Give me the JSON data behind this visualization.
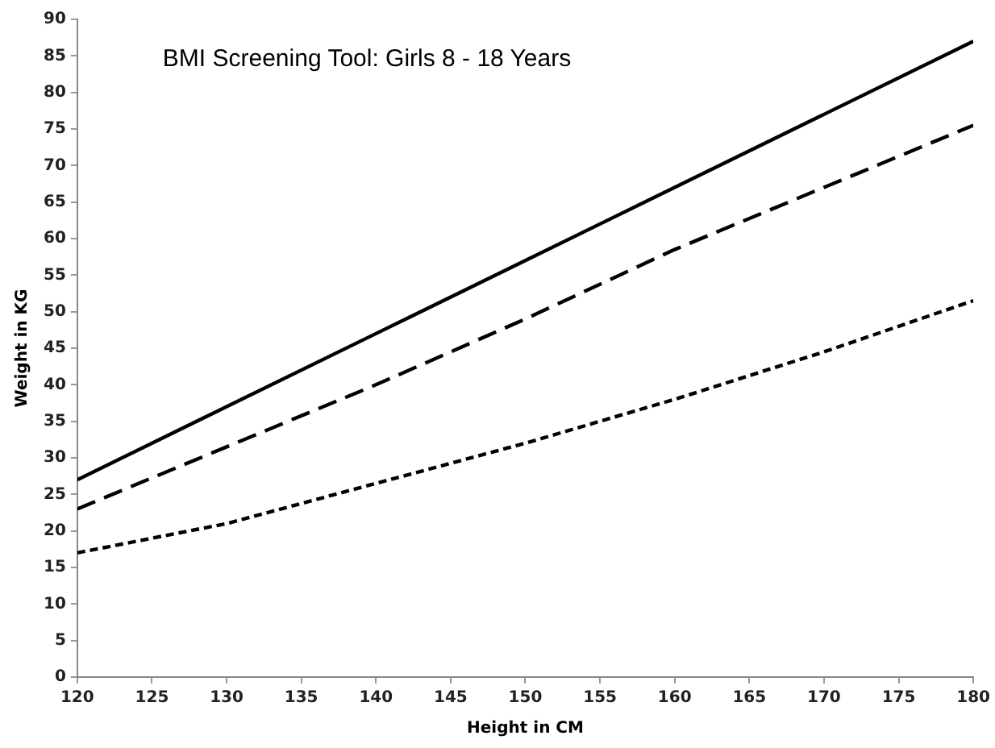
{
  "chart_data": {
    "type": "line",
    "title": "BMI Screening Tool: Girls 8 - 18 Years",
    "xlabel": "Height in CM",
    "ylabel": "Weight in KG",
    "x": [
      120,
      130,
      140,
      150,
      160,
      170,
      180
    ],
    "series": [
      {
        "color": "#000000",
        "line_style": "solid",
        "values": [
          27,
          37,
          47,
          57,
          67,
          77,
          87
        ]
      },
      {
        "color": "#000000",
        "line_style": "dashed",
        "values": [
          23,
          31.5,
          40,
          49,
          58.5,
          67,
          75.5
        ]
      },
      {
        "color": "#000000",
        "line_style": "dotted",
        "values": [
          17,
          21,
          26.5,
          32,
          38,
          44.5,
          51.5
        ]
      }
    ],
    "xlim": [
      120,
      180
    ],
    "xticks": [
      120,
      125,
      130,
      135,
      140,
      145,
      150,
      155,
      160,
      165,
      170,
      175,
      180
    ],
    "ylim": [
      0,
      90
    ],
    "yticks": [
      0,
      5,
      10,
      15,
      20,
      25,
      30,
      35,
      40,
      45,
      50,
      55,
      60,
      65,
      70,
      75,
      80,
      85,
      90
    ],
    "grid": false,
    "legend": false,
    "marker": "none"
  }
}
